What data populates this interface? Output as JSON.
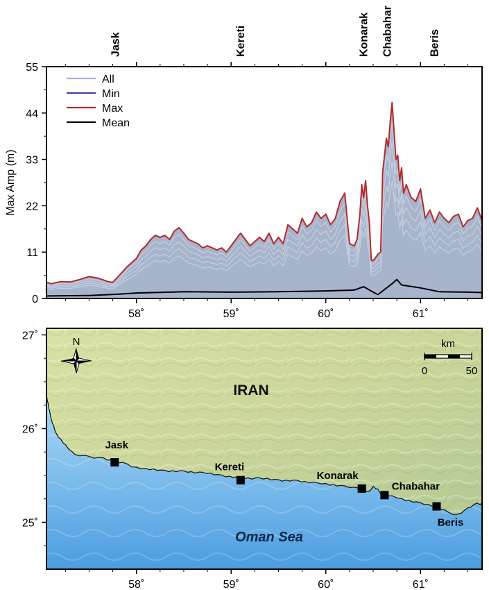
{
  "chart_data": [
    {
      "type": "line",
      "ylabel": "Max Amp (m)",
      "ylim": [
        0,
        55
      ],
      "yticks": [
        0,
        11,
        22,
        33,
        44,
        55
      ],
      "xlim": [
        57.05,
        61.65
      ],
      "xticks": [
        58,
        59,
        60,
        61
      ],
      "xtick_labels": [
        "58˚",
        "59˚",
        "60˚",
        "61˚"
      ],
      "top_labels": [
        {
          "text": "Jask",
          "x": 57.78
        },
        {
          "text": "Kereti",
          "x": 59.1
        },
        {
          "text": "Konarak",
          "x": 60.4
        },
        {
          "text": "Chabahar",
          "x": 60.65
        },
        {
          "text": "Beris",
          "x": 61.15
        }
      ],
      "legend": {
        "position": "top-left",
        "entries": [
          {
            "name": "All",
            "color": "#a7b4cc"
          },
          {
            "name": "Min",
            "color": "#4a3f9f"
          },
          {
            "name": "Max",
            "color": "#b52a2a"
          },
          {
            "name": "Mean",
            "color": "#000000"
          }
        ]
      },
      "grid": false,
      "series": [
        {
          "name": "Max",
          "color": "#b52a2a",
          "x": [
            57.05,
            57.1,
            57.2,
            57.3,
            57.4,
            57.5,
            57.6,
            57.7,
            57.75,
            57.8,
            57.9,
            58.0,
            58.05,
            58.1,
            58.15,
            58.2,
            58.25,
            58.3,
            58.35,
            58.4,
            58.45,
            58.5,
            58.55,
            58.6,
            58.65,
            58.7,
            58.75,
            58.8,
            58.85,
            58.9,
            58.95,
            59.0,
            59.05,
            59.1,
            59.15,
            59.2,
            59.25,
            59.3,
            59.35,
            59.4,
            59.45,
            59.5,
            59.55,
            59.6,
            59.65,
            59.7,
            59.75,
            59.8,
            59.85,
            59.9,
            59.95,
            60.0,
            60.05,
            60.1,
            60.15,
            60.2,
            60.25,
            60.3,
            60.33,
            60.36,
            60.38,
            60.4,
            60.42,
            60.44,
            60.46,
            60.48,
            60.5,
            60.52,
            60.55,
            60.58,
            60.6,
            60.62,
            60.64,
            60.66,
            60.68,
            60.7,
            60.72,
            60.74,
            60.76,
            60.78,
            60.8,
            60.82,
            60.85,
            60.9,
            60.95,
            61.0,
            61.05,
            61.1,
            61.15,
            61.2,
            61.25,
            61.3,
            61.35,
            61.4,
            61.45,
            61.5,
            61.55,
            61.6,
            61.65
          ],
          "values": [
            3.8,
            3.5,
            4.0,
            3.9,
            4.5,
            5.2,
            4.8,
            4.0,
            3.8,
            5.0,
            7.5,
            9.5,
            11.5,
            12.5,
            14.0,
            15.0,
            14.5,
            15.0,
            14.0,
            16.0,
            16.8,
            15.5,
            14.0,
            13.5,
            13.0,
            12.0,
            12.5,
            12.0,
            11.5,
            12.0,
            11.0,
            12.5,
            14.0,
            15.5,
            14.0,
            12.5,
            13.5,
            14.5,
            13.5,
            15.5,
            13.0,
            14.5,
            13.0,
            17.5,
            16.5,
            15.5,
            19.0,
            17.0,
            18.0,
            20.5,
            19.0,
            20.0,
            17.5,
            19.0,
            23.0,
            25.0,
            13.0,
            12.5,
            14.0,
            20.0,
            27.0,
            24.0,
            28.0,
            22.0,
            18.0,
            9.0,
            9.0,
            9.5,
            10.5,
            11.0,
            30.0,
            34.0,
            38.0,
            36.0,
            42.0,
            46.5,
            40.0,
            33.0,
            34.0,
            28.0,
            31.0,
            25.0,
            27.0,
            24.0,
            23.0,
            26.0,
            19.0,
            21.0,
            18.0,
            20.5,
            19.0,
            18.0,
            19.5,
            20.0,
            17.0,
            18.5,
            19.0,
            21.5,
            18.5
          ]
        },
        {
          "name": "Mean",
          "color": "#000000",
          "x": [
            57.05,
            57.5,
            57.8,
            58.0,
            58.5,
            59.0,
            59.5,
            60.0,
            60.3,
            60.4,
            60.5,
            60.55,
            60.7,
            60.75,
            60.8,
            61.0,
            61.2,
            61.5,
            61.65
          ],
          "values": [
            0.6,
            0.7,
            1.0,
            1.3,
            1.6,
            1.5,
            1.6,
            1.8,
            2.0,
            2.8,
            1.5,
            0.9,
            3.5,
            4.5,
            3.2,
            2.5,
            1.6,
            1.5,
            1.4
          ]
        }
      ]
    },
    {
      "type": "map",
      "region_label": "IRAN",
      "sea_label": "Oman Sea",
      "north_label": "N",
      "scale_bar": {
        "unit": "km",
        "start": "0",
        "end": "50"
      },
      "xlim": [
        57.05,
        61.65
      ],
      "ylim": [
        24.5,
        27.07
      ],
      "xticks": [
        58,
        59,
        60,
        61
      ],
      "xtick_labels": [
        "58˚",
        "59˚",
        "60˚",
        "61˚"
      ],
      "yticks": [
        25,
        26,
        27
      ],
      "ytick_labels": [
        "25˚",
        "26˚",
        "27˚"
      ],
      "places": [
        {
          "name": "Jask",
          "lon": 57.77,
          "lat": 25.64
        },
        {
          "name": "Kereti",
          "lon": 59.1,
          "lat": 25.45
        },
        {
          "name": "Konarak",
          "lon": 60.38,
          "lat": 25.36
        },
        {
          "name": "Chabahar",
          "lon": 60.62,
          "lat": 25.29
        },
        {
          "name": "Beris",
          "lon": 61.17,
          "lat": 25.17
        }
      ],
      "coastline": [
        [
          57.05,
          26.35
        ],
        [
          57.1,
          26.1
        ],
        [
          57.15,
          25.95
        ],
        [
          57.25,
          25.82
        ],
        [
          57.35,
          25.72
        ],
        [
          57.5,
          25.7
        ],
        [
          57.65,
          25.68
        ],
        [
          57.77,
          25.65
        ],
        [
          57.9,
          25.62
        ],
        [
          58.0,
          25.58
        ],
        [
          58.1,
          25.57
        ],
        [
          58.3,
          25.55
        ],
        [
          58.5,
          25.54
        ],
        [
          58.7,
          25.53
        ],
        [
          58.9,
          25.5
        ],
        [
          59.1,
          25.47
        ],
        [
          59.3,
          25.47
        ],
        [
          59.5,
          25.45
        ],
        [
          59.7,
          25.44
        ],
        [
          59.9,
          25.42
        ],
        [
          60.0,
          25.41
        ],
        [
          60.2,
          25.38
        ],
        [
          60.3,
          25.37
        ],
        [
          60.38,
          25.37
        ],
        [
          60.45,
          25.32
        ],
        [
          60.5,
          25.38
        ],
        [
          60.55,
          25.35
        ],
        [
          60.6,
          25.29
        ],
        [
          60.7,
          25.28
        ],
        [
          60.8,
          25.25
        ],
        [
          61.0,
          25.2
        ],
        [
          61.17,
          25.17
        ],
        [
          61.3,
          25.1
        ],
        [
          61.4,
          25.08
        ],
        [
          61.5,
          25.15
        ],
        [
          61.6,
          25.2
        ],
        [
          61.65,
          25.2
        ]
      ]
    }
  ]
}
